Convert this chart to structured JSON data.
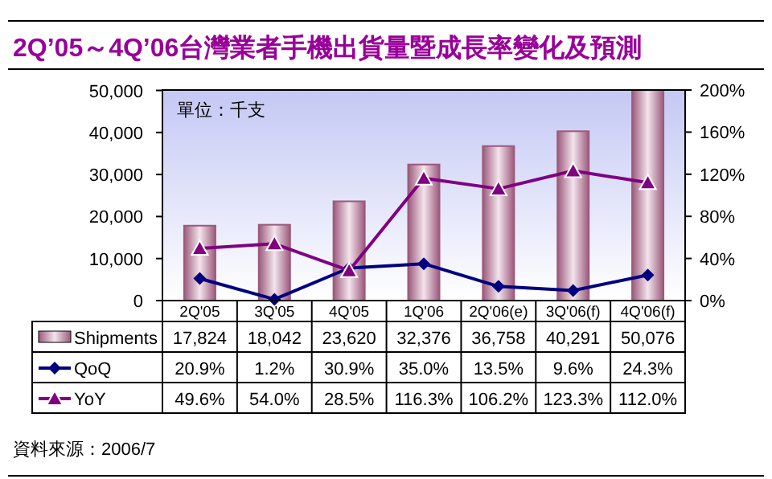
{
  "chart_data": {
    "type": "bar",
    "title": "2Q’05～4Q’06台灣業者手機出貨量暨成長率變化及預測",
    "categories": [
      "2Q'05",
      "3Q'05",
      "4Q'05",
      "1Q'06",
      "2Q'06(e)",
      "3Q'06(f)",
      "4Q'06(f)"
    ],
    "series": [
      {
        "name": "Shipments",
        "color": "#9c5a7c",
        "values": [
          17824,
          18042,
          23620,
          32376,
          36758,
          40291,
          50076
        ],
        "value_labels": [
          "17,824",
          "18,042",
          "23,620",
          "32,376",
          "36,758",
          "40,291",
          "50,076"
        ]
      },
      {
        "name": "QoQ",
        "type": "line",
        "axis": "y2",
        "color": "#000080",
        "marker": "diamond",
        "values": [
          20.9,
          1.2,
          30.9,
          35.0,
          13.5,
          9.6,
          24.3
        ],
        "value_labels": [
          "20.9%",
          "1.2%",
          "30.9%",
          "35.0%",
          "13.5%",
          "9.6%",
          "24.3%"
        ]
      },
      {
        "name": "YoY",
        "type": "line",
        "axis": "y2",
        "color": "#800080",
        "marker": "triangle",
        "values": [
          49.6,
          54.0,
          28.5,
          116.3,
          106.2,
          123.3,
          112.0
        ],
        "value_labels": [
          "49.6%",
          "54.0%",
          "28.5%",
          "116.3%",
          "106.2%",
          "123.3%",
          "112.0%"
        ]
      }
    ],
    "ylim": [
      0,
      50100
    ],
    "yticks": [
      {
        "value": 0,
        "label": "0"
      },
      {
        "value": 10000,
        "label": "10,000"
      },
      {
        "value": 20000,
        "label": "20,000"
      },
      {
        "value": 30000,
        "label": "30,000"
      },
      {
        "value": 40000,
        "label": "40,000"
      },
      {
        "value": 50000,
        "label": "50,000"
      }
    ],
    "y2lim": [
      0,
      200
    ],
    "y2ticks": [
      {
        "value": 0,
        "label": "0%"
      },
      {
        "value": 40,
        "label": "40%"
      },
      {
        "value": 80,
        "label": "80%"
      },
      {
        "value": 120,
        "label": "120%"
      },
      {
        "value": 160,
        "label": "160%"
      },
      {
        "value": 200,
        "label": "200%"
      }
    ],
    "annotations": [
      "單位：千支",
      "資料來源：2006/7"
    ],
    "legend": "bottom",
    "grid": false,
    "line_style": "solid"
  }
}
